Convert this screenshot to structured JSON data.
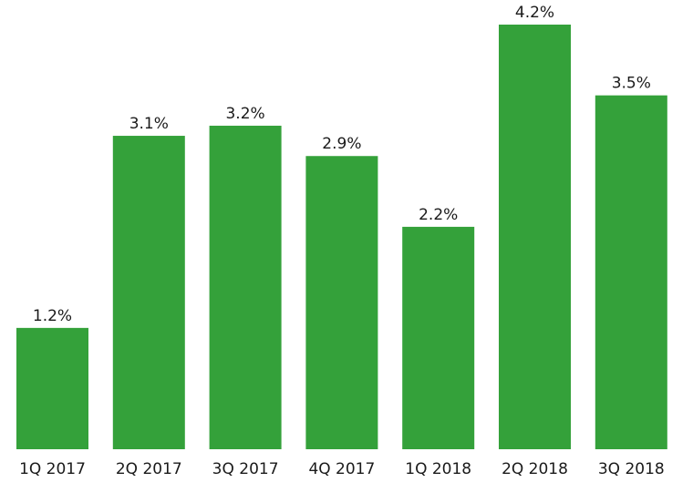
{
  "chart_data": {
    "type": "bar",
    "categories": [
      "1Q 2017",
      "2Q 2017",
      "3Q 2017",
      "4Q 2017",
      "1Q 2018",
      "2Q 2018",
      "3Q 2018"
    ],
    "values": [
      1.2,
      3.1,
      3.2,
      2.9,
      2.2,
      4.2,
      3.5
    ],
    "value_labels": [
      "1.2%",
      "3.1%",
      "3.2%",
      "2.9%",
      "2.2%",
      "4.2%",
      "3.5%"
    ],
    "title": "",
    "xlabel": "",
    "ylabel": "",
    "ylim": [
      0,
      4.2
    ],
    "grid": false,
    "legend": "none",
    "bar_color": "#34a13a"
  }
}
